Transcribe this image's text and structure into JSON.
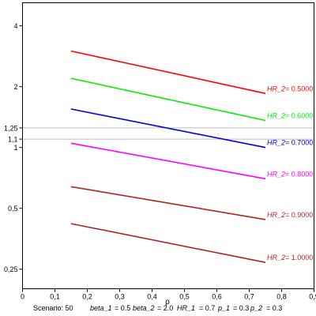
{
  "chart_data": {
    "type": "line",
    "xlabel": "ρ",
    "xlim": [
      0,
      0.9
    ],
    "x_ticks": [
      "0",
      "0,1",
      "0,2",
      "0,3",
      "0,4",
      "0,5",
      "0,6",
      "0,7",
      "0,8",
      "0,9"
    ],
    "x_tick_values": [
      0,
      0.1,
      0.2,
      0.3,
      0.4,
      0.5,
      0.6,
      0.7,
      0.8,
      0.9
    ],
    "y_scale": "log",
    "ylim": [
      0.2,
      5.2
    ],
    "y_ticks": [
      "0,25",
      "0,5",
      "1",
      "1,1",
      "1,25",
      "2",
      "4"
    ],
    "y_tick_values": [
      0.25,
      0.5,
      1,
      1.1,
      1.25,
      2,
      4
    ],
    "reference_lines_y": [
      1.1,
      1.25
    ],
    "series": [
      {
        "name": "HR_2 = 0.5000",
        "label_var": "HR_2",
        "label_val": "= 0.5000",
        "color": "#ff0000",
        "x": [
          0.15,
          0.75
        ],
        "y": [
          3.0,
          1.85
        ]
      },
      {
        "name": "HR_2 = 0.6000",
        "label_var": "HR_2",
        "label_val": "= 0.6000",
        "color": "#00ee00",
        "x": [
          0.15,
          0.75
        ],
        "y": [
          2.2,
          1.36
        ]
      },
      {
        "name": "HR_2 = 0.7000",
        "label_var": "HR_2",
        "label_val": "= 0.7000",
        "color": "#0000dd",
        "x": [
          0.15,
          0.75
        ],
        "y": [
          1.55,
          1.0
        ]
      },
      {
        "name": "HR_2 = 0.8000",
        "label_var": "HR_2",
        "label_val": "= 0.8000",
        "color": "#ff00ff",
        "x": [
          0.15,
          0.75
        ],
        "y": [
          1.05,
          0.7
        ]
      },
      {
        "name": "HR_2 = 0.9000",
        "label_var": "HR_2",
        "label_val": "= 0.9000",
        "color": "#b22222",
        "x": [
          0.15,
          0.75
        ],
        "y": [
          0.64,
          0.44
        ]
      },
      {
        "name": "HR_2 = 1.0000",
        "label_var": "HR_2",
        "label_val": "= 1.0000",
        "color": "#b22222",
        "x": [
          0.15,
          0.75
        ],
        "y": [
          0.42,
          0.27
        ]
      }
    ]
  },
  "footer": {
    "scenario": "Scenario: 50",
    "beta1_var": "beta_1",
    "beta1_val": "= 0.5",
    "beta2_var": "beta_2",
    "beta2_val": "= 2.0",
    "hr1_var": "HR_1",
    "hr1_val": "= 0.7",
    "p1_var": "p_1",
    "p1_val": "= 0.3",
    "p2_var": "p_2",
    "p2_val": "= 0.3"
  }
}
